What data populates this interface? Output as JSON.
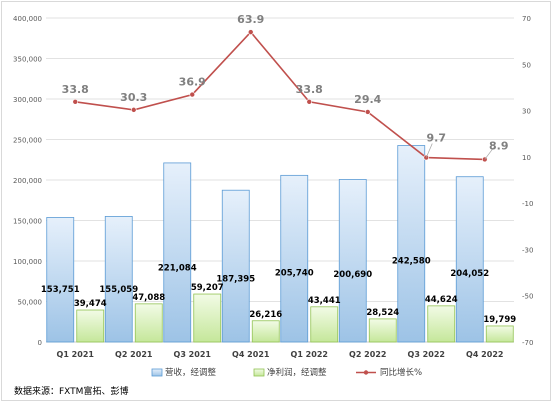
{
  "chart_data": {
    "type": "bar+line",
    "categories": [
      "Q1 2021",
      "Q2 2021",
      "Q3 2021",
      "Q4 2021",
      "Q1 2022",
      "Q2 2022",
      "Q3 2022",
      "Q4 2022"
    ],
    "series": [
      {
        "name": "营收，经调整",
        "type": "bar",
        "axis": "left",
        "color": "#bdd7ee",
        "values": [
          153751,
          155059,
          221084,
          187395,
          205740,
          200690,
          242580,
          204052
        ],
        "labels": [
          "153,751",
          "155,059",
          "221,084",
          "187,395",
          "205,740",
          "200,690",
          "242,580",
          "204,052"
        ]
      },
      {
        "name": "净利润，经调整",
        "type": "bar",
        "axis": "left",
        "color": "#d9f2b8",
        "values": [
          39474,
          47088,
          59207,
          26216,
          43441,
          28524,
          44624,
          19799
        ],
        "labels": [
          "39,474",
          "47,088",
          "59,207",
          "26,216",
          "43,441",
          "28,524",
          "44,624",
          "19,799"
        ]
      },
      {
        "name": "同比增长%",
        "type": "line",
        "axis": "right",
        "color": "#c0504d",
        "values": [
          33.8,
          30.3,
          36.9,
          63.9,
          33.8,
          29.4,
          9.7,
          8.9
        ],
        "labels": [
          "33.8",
          "30.3",
          "36.9",
          "63.9",
          "33.8",
          "29.4",
          "9.7",
          "8.9"
        ]
      }
    ],
    "left_axis": {
      "ylim": [
        0,
        400000
      ],
      "ticks": [
        0,
        50000,
        100000,
        150000,
        200000,
        250000,
        300000,
        350000,
        400000
      ],
      "tick_labels": [
        "0",
        "50,000",
        "100,000",
        "150,000",
        "200,000",
        "250,000",
        "300,000",
        "350,000",
        "400,000"
      ]
    },
    "right_axis": {
      "ylim": [
        -70,
        70
      ],
      "ticks": [
        -70,
        -50,
        -30,
        -10,
        10,
        30,
        50,
        70
      ],
      "tick_labels": [
        "-70",
        "-50",
        "-30",
        "-10",
        "10",
        "30",
        "50",
        "70"
      ]
    },
    "grid": true,
    "legend_position": "bottom"
  },
  "source_text": "数据来源：FXTM富拓、彭博"
}
